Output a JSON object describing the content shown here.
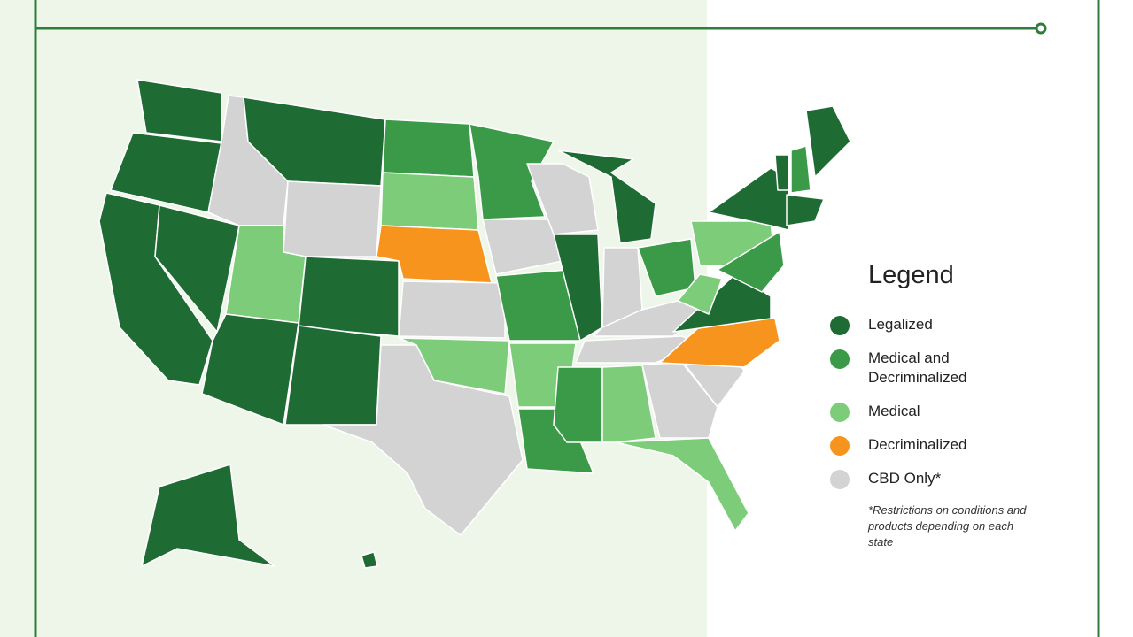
{
  "legend": {
    "title": "Legend",
    "items": [
      {
        "label": "Legalized",
        "color": "#1e6b34"
      },
      {
        "label": "Medical and Decriminalized",
        "color": "#3a9a48"
      },
      {
        "label": "Medical",
        "color": "#7ccc7a"
      },
      {
        "label": "Decriminalized",
        "color": "#f7941d"
      },
      {
        "label": "CBD Only*",
        "color": "#d3d3d3"
      }
    ],
    "note": "*Restrictions on conditions and products depending on each state"
  }
}
